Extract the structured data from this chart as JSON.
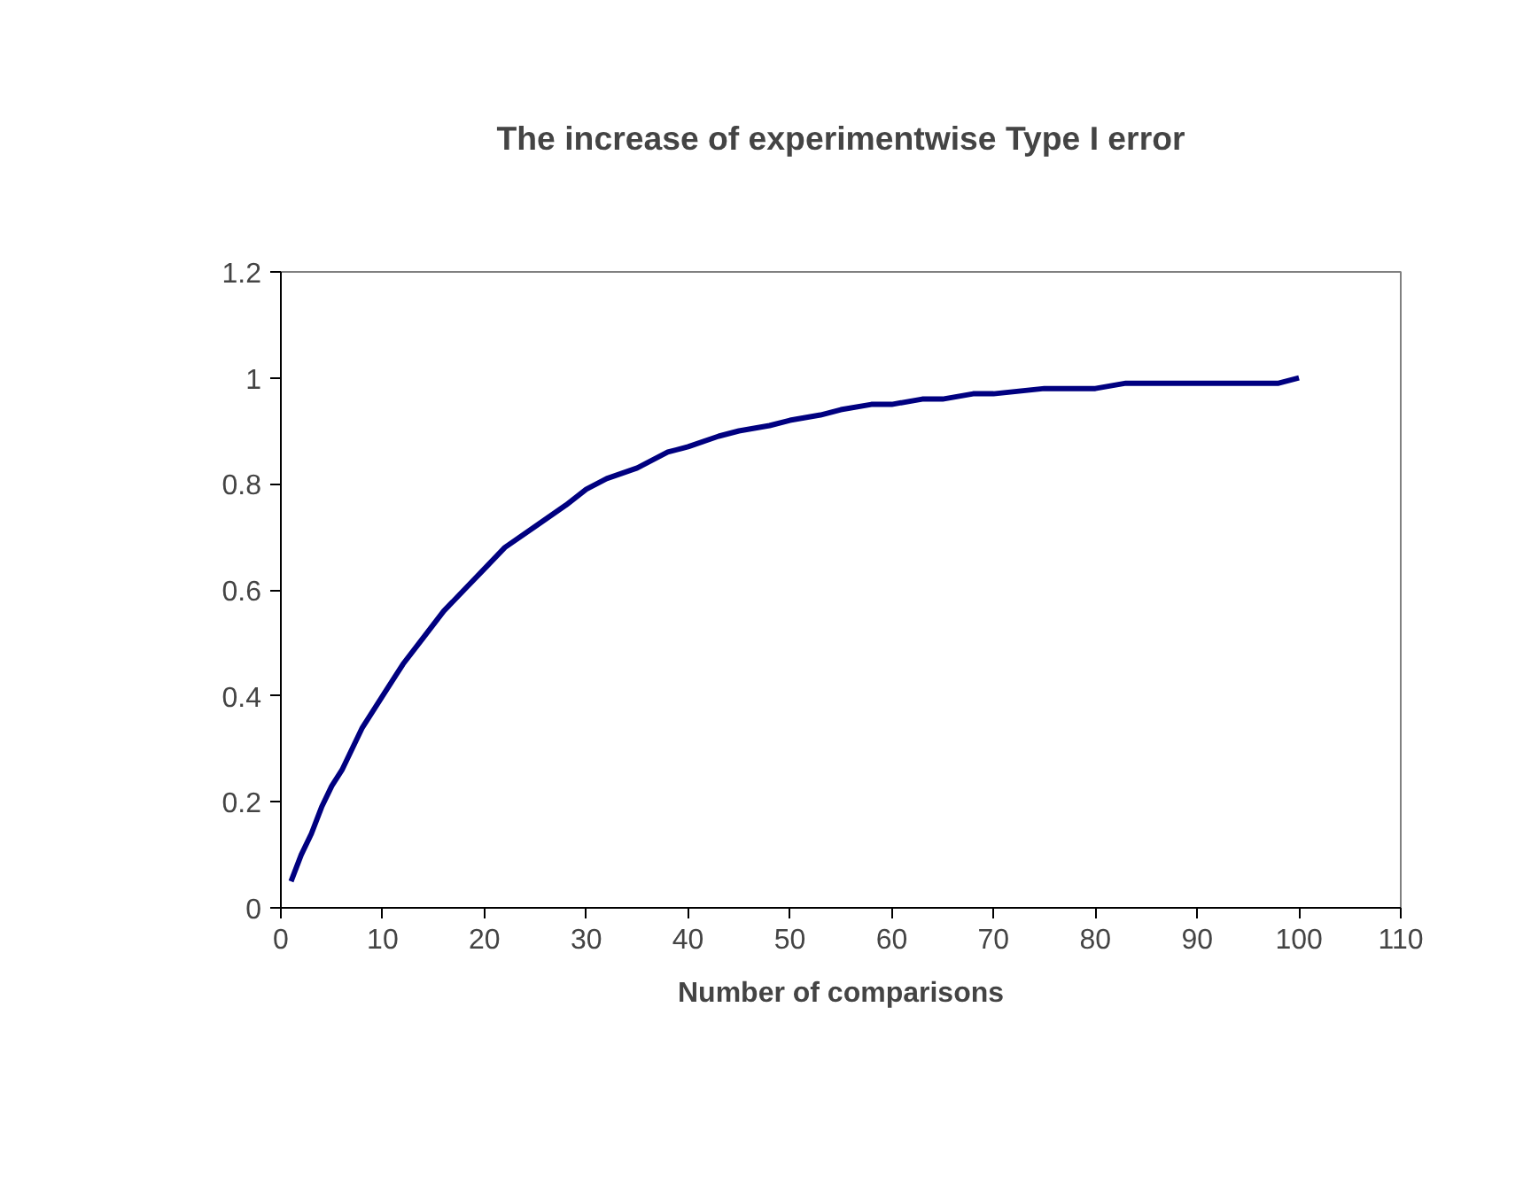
{
  "chart_data": {
    "type": "line",
    "title": "The increase of experimentwise Type I error",
    "xlabel": "Number of comparisons",
    "x": [
      1,
      2,
      3,
      4,
      5,
      6,
      8,
      10,
      12,
      14,
      16,
      18,
      20,
      22,
      25,
      28,
      30,
      32,
      35,
      38,
      40,
      43,
      45,
      48,
      50,
      53,
      55,
      58,
      60,
      63,
      65,
      68,
      70,
      75,
      80,
      83,
      85,
      90,
      95,
      98,
      100
    ],
    "series": [
      {
        "color": "#000080",
        "values": [
          0.05,
          0.1,
          0.14,
          0.19,
          0.23,
          0.26,
          0.34,
          0.4,
          0.46,
          0.51,
          0.56,
          0.6,
          0.64,
          0.68,
          0.72,
          0.76,
          0.79,
          0.81,
          0.83,
          0.86,
          0.87,
          0.89,
          0.9,
          0.91,
          0.92,
          0.93,
          0.94,
          0.95,
          0.95,
          0.96,
          0.96,
          0.97,
          0.97,
          0.98,
          0.98,
          0.99,
          0.99,
          0.99,
          0.99,
          0.99,
          1.0
        ]
      }
    ],
    "xlim": [
      0,
      110
    ],
    "xticks": [
      0,
      10,
      20,
      30,
      40,
      50,
      60,
      70,
      80,
      90,
      100,
      110
    ],
    "ylim": [
      0,
      1.2
    ],
    "yticks": [
      0,
      {
        "value": 0.2,
        "label": "0.2"
      },
      {
        "value": 0.4,
        "label": "0.4"
      },
      {
        "value": 0.6,
        "label": "0.6"
      },
      {
        "value": 0.8,
        "label": "0.8"
      },
      1,
      {
        "value": 1.2,
        "label": "1.2"
      }
    ],
    "grid": false,
    "marker": "none",
    "line_style": "solid"
  }
}
